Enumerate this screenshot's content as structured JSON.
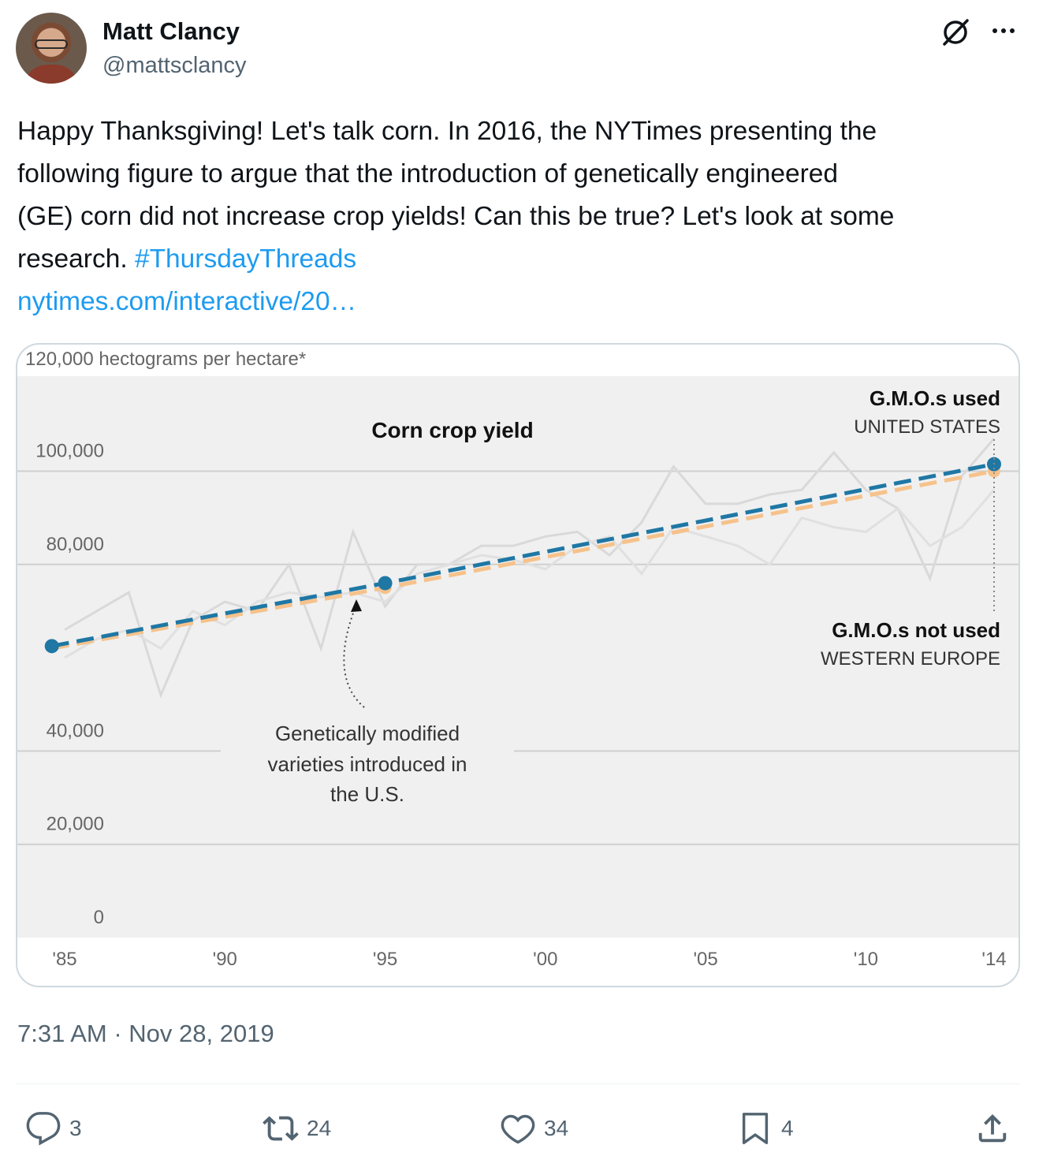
{
  "author": {
    "name": "Matt Clancy",
    "handle": "@mattsclancy"
  },
  "tweet": {
    "text_lines": [
      "Happy Thanksgiving! Let's talk corn. In 2016, the NYTimes presenting the",
      "following figure to argue that the introduction of genetically engineered",
      "(GE) corn did not increase crop yields! Can this be true? Let's look at some"
    ],
    "last_line_prefix": "research. ",
    "hashtag": "#ThursdayThreads",
    "link": "nytimes.com/interactive/20…",
    "timestamp": "7:31 AM · Nov 28, 2019"
  },
  "actions": {
    "replies": "3",
    "retweets": "24",
    "likes": "34",
    "bookmarks": "4"
  },
  "colors": {
    "us_line": "#1f77a4",
    "europe_line": "#f6c28b",
    "link": "#1d9bf0",
    "chart_background": "#f0f0f0"
  },
  "chart_data": {
    "type": "line",
    "title": "Corn crop yield",
    "ylabel": "120,000 hectograms per hectare*",
    "ylim": [
      0,
      120000
    ],
    "yticks": [
      0,
      20000,
      40000,
      80000,
      100000
    ],
    "ytick_labels": [
      "0",
      "20,000",
      "40,000",
      "80,000",
      "100,000"
    ],
    "xlim": [
      1985,
      2014
    ],
    "xticks": [
      1985,
      1990,
      1995,
      2000,
      2005,
      2010,
      2014
    ],
    "xtick_labels": [
      "'85",
      "'90",
      "'95",
      "'00",
      "'05",
      "'10",
      "'14"
    ],
    "series": [
      {
        "name": "UNITED STATES",
        "group_label": "G.M.O.s used",
        "color": "#1f77a4",
        "style": "trend-dashed",
        "x": [
          1984.6,
          1995,
          2014
        ],
        "y": [
          62500,
          76000,
          101500
        ]
      },
      {
        "name": "WESTERN EUROPE",
        "group_label": "G.M.O.s not used",
        "color": "#f6c28b",
        "style": "trend-dashed",
        "x": [
          1984.6,
          1995,
          2014
        ],
        "y": [
          62000,
          75000,
          100000
        ]
      },
      {
        "name": "United States actual",
        "color": "#d9d9d9",
        "style": "solid",
        "x": [
          1985,
          1986,
          1987,
          1988,
          1989,
          1990,
          1991,
          1992,
          1993,
          1994,
          1995,
          1996,
          1997,
          1998,
          1999,
          2000,
          2001,
          2002,
          2003,
          2004,
          2005,
          2006,
          2007,
          2008,
          2009,
          2010,
          2011,
          2012,
          2013,
          2014
        ],
        "y": [
          66000,
          70000,
          74000,
          52000,
          68000,
          72000,
          70000,
          80000,
          62000,
          87000,
          71000,
          80000,
          80000,
          84000,
          84000,
          86000,
          87000,
          82000,
          89000,
          101000,
          93000,
          93000,
          95000,
          96000,
          104000,
          96000,
          92000,
          77000,
          99000,
          107000
        ]
      },
      {
        "name": "Western Europe actual",
        "color": "#e0e0e0",
        "style": "solid",
        "x": [
          1985,
          1986,
          1987,
          1988,
          1989,
          1990,
          1991,
          1992,
          1993,
          1994,
          1995,
          1996,
          1997,
          1998,
          1999,
          2000,
          2001,
          2002,
          2003,
          2004,
          2005,
          2006,
          2007,
          2008,
          2009,
          2010,
          2011,
          2012,
          2013,
          2014
        ],
        "y": [
          60000,
          64000,
          66000,
          62000,
          70000,
          67000,
          72000,
          74000,
          73000,
          74000,
          72000,
          78000,
          80000,
          82000,
          81000,
          79000,
          84000,
          86000,
          78000,
          88000,
          86000,
          84000,
          80000,
          90000,
          88000,
          87000,
          92000,
          84000,
          88000,
          96000
        ]
      }
    ],
    "annotations": {
      "gmo_intro": [
        "Genetically modified",
        "varieties introduced in",
        "the U.S."
      ],
      "gmo_intro_year": 1995
    }
  }
}
